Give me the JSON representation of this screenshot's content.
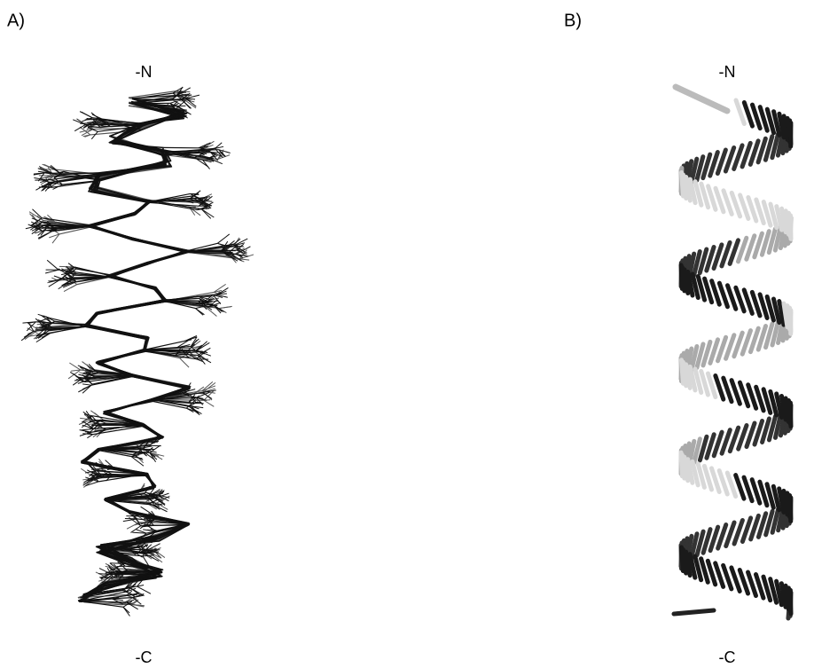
{
  "panels": [
    {
      "label": "A)",
      "top": "-N",
      "bottom": "-C"
    },
    {
      "label": "B)",
      "top": "-N",
      "bottom": "-C"
    }
  ]
}
